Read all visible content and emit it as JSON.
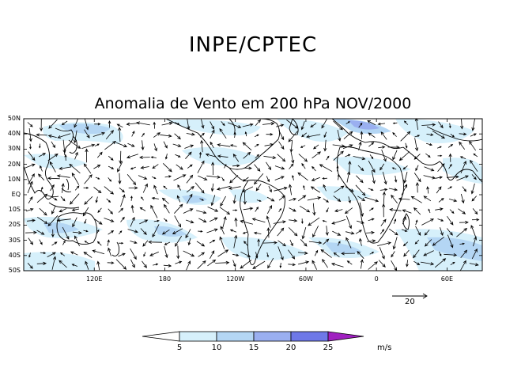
{
  "header": {
    "title": "INPE/CPTEC"
  },
  "map": {
    "title": "Anomalia de Vento em 200 hPa NOV/2000",
    "lat_labels": [
      "50N",
      "40N",
      "30N",
      "20N",
      "10N",
      "EQ",
      "10S",
      "20S",
      "30S",
      "40S",
      "50S"
    ],
    "lon_labels": [
      {
        "label": "120E",
        "lon": 120
      },
      {
        "label": "180",
        "lon": 180
      },
      {
        "label": "120W",
        "lon": 240
      },
      {
        "label": "60W",
        "lon": 300
      },
      {
        "label": "0",
        "lon": 360
      },
      {
        "label": "60E",
        "lon": 420
      }
    ],
    "lon_range": [
      60,
      450
    ],
    "lat_range": [
      -50,
      50
    ],
    "reference_vector": {
      "label": "20"
    }
  },
  "colorbar": {
    "labels": [
      "5",
      "10",
      "15",
      "20",
      "25"
    ],
    "colors": [
      "#ffffff",
      "#d6f0fb",
      "#b4d6f4",
      "#9aaff0",
      "#6e78e8",
      "#a020c0"
    ],
    "unit": "m/s"
  }
}
